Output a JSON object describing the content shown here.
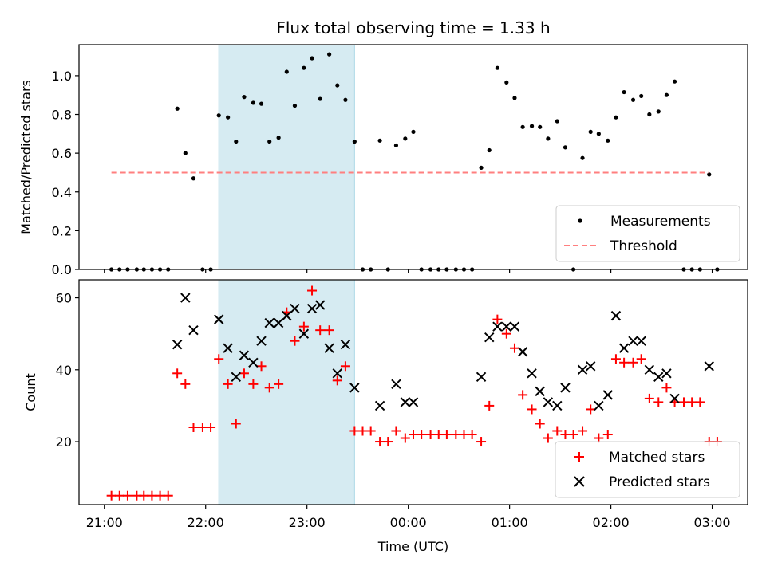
{
  "chart_data": [
    {
      "type": "scatter",
      "title": "Flux total observing time = 1.33 h",
      "xlabel": "",
      "ylabel": "Matched/Predicted stars",
      "ylim": [
        0,
        1.16
      ],
      "yticks": [
        0.0,
        0.2,
        0.4,
        0.6,
        0.8,
        1.0
      ],
      "ytick_labels": [
        "0.0",
        "0.2",
        "0.4",
        "0.6",
        "0.8",
        "1.0"
      ],
      "xlim_hours": [
        20.75,
        27.35
      ],
      "shaded_region_hours": [
        22.13,
        23.47
      ],
      "legend_placement": "lower-right",
      "series": [
        {
          "name": "Measurements",
          "marker": "dot",
          "color": "#000000",
          "points": [
            [
              21.07,
              0
            ],
            [
              21.15,
              0
            ],
            [
              21.23,
              0
            ],
            [
              21.32,
              0
            ],
            [
              21.39,
              0
            ],
            [
              21.47,
              0
            ],
            [
              21.55,
              0
            ],
            [
              21.63,
              0
            ],
            [
              21.72,
              0.83
            ],
            [
              21.8,
              0.6
            ],
            [
              21.88,
              0.47
            ],
            [
              21.97,
              0
            ],
            [
              22.05,
              0
            ],
            [
              22.13,
              0.795
            ],
            [
              22.22,
              0.785
            ],
            [
              22.3,
              0.66
            ],
            [
              22.38,
              0.89
            ],
            [
              22.47,
              0.86
            ],
            [
              22.55,
              0.855
            ],
            [
              22.63,
              0.66
            ],
            [
              22.72,
              0.68
            ],
            [
              22.8,
              1.02
            ],
            [
              22.88,
              0.845
            ],
            [
              22.97,
              1.04
            ],
            [
              23.05,
              1.09
            ],
            [
              23.13,
              0.88
            ],
            [
              23.22,
              1.11
            ],
            [
              23.3,
              0.95
            ],
            [
              23.38,
              0.875
            ],
            [
              23.47,
              0.66
            ],
            [
              23.55,
              0
            ],
            [
              23.63,
              0
            ],
            [
              23.72,
              0.665
            ],
            [
              23.8,
              0
            ],
            [
              23.88,
              0.64
            ],
            [
              23.97,
              0.675
            ],
            [
              24.05,
              0.71
            ],
            [
              24.13,
              0
            ],
            [
              24.22,
              0
            ],
            [
              24.3,
              0
            ],
            [
              24.38,
              0
            ],
            [
              24.47,
              0
            ],
            [
              24.55,
              0
            ],
            [
              24.63,
              0
            ],
            [
              24.72,
              0.525
            ],
            [
              24.8,
              0.615
            ],
            [
              24.88,
              1.04
            ],
            [
              24.97,
              0.965
            ],
            [
              25.05,
              0.885
            ],
            [
              25.13,
              0.735
            ],
            [
              25.22,
              0.74
            ],
            [
              25.3,
              0.735
            ],
            [
              25.38,
              0.675
            ],
            [
              25.47,
              0.765
            ],
            [
              25.55,
              0.63
            ],
            [
              25.63,
              0
            ],
            [
              25.72,
              0.575
            ],
            [
              25.8,
              0.71
            ],
            [
              25.88,
              0.7
            ],
            [
              25.97,
              0.665
            ],
            [
              26.05,
              0.785
            ],
            [
              26.13,
              0.915
            ],
            [
              26.22,
              0.875
            ],
            [
              26.3,
              0.895
            ],
            [
              26.38,
              0.8
            ],
            [
              26.47,
              0.815
            ],
            [
              26.55,
              0.9
            ],
            [
              26.63,
              0.97
            ],
            [
              26.72,
              0
            ],
            [
              26.8,
              0
            ],
            [
              26.88,
              0
            ],
            [
              26.97,
              0.49
            ],
            [
              27.05,
              0
            ]
          ]
        },
        {
          "name": "Threshold",
          "marker": "dashed-line",
          "color": "#ff7f7f",
          "points": [
            [
              21.07,
              0.5
            ],
            [
              26.97,
              0.5
            ]
          ]
        }
      ]
    },
    {
      "type": "scatter",
      "title": "",
      "xlabel": "Time (UTC)",
      "ylabel": "Count",
      "ylim": [
        2.5,
        65
      ],
      "yticks": [
        20,
        40,
        60
      ],
      "ytick_labels": [
        "20",
        "40",
        "60"
      ],
      "xlim_hours": [
        20.75,
        27.35
      ],
      "xticks_hours": [
        21,
        22,
        23,
        24,
        25,
        26,
        27
      ],
      "xtick_labels": [
        "21:00",
        "22:00",
        "23:00",
        "00:00",
        "01:00",
        "02:00",
        "03:00"
      ],
      "shaded_region_hours": [
        22.13,
        23.47
      ],
      "legend_placement": "lower-right",
      "series": [
        {
          "name": "Matched stars",
          "marker": "plus",
          "color": "#ff0000",
          "points": [
            [
              21.07,
              5
            ],
            [
              21.15,
              5
            ],
            [
              21.23,
              5
            ],
            [
              21.32,
              5
            ],
            [
              21.39,
              5
            ],
            [
              21.47,
              5
            ],
            [
              21.55,
              5
            ],
            [
              21.63,
              5
            ],
            [
              21.72,
              39
            ],
            [
              21.8,
              36
            ],
            [
              21.88,
              24
            ],
            [
              21.97,
              24
            ],
            [
              22.05,
              24
            ],
            [
              22.13,
              43
            ],
            [
              22.22,
              36
            ],
            [
              22.3,
              25
            ],
            [
              22.38,
              39
            ],
            [
              22.47,
              36
            ],
            [
              22.55,
              41
            ],
            [
              22.63,
              35
            ],
            [
              22.72,
              36
            ],
            [
              22.8,
              56
            ],
            [
              22.88,
              48
            ],
            [
              22.97,
              52
            ],
            [
              23.05,
              62
            ],
            [
              23.13,
              51
            ],
            [
              23.22,
              51
            ],
            [
              23.3,
              37
            ],
            [
              23.38,
              41
            ],
            [
              23.47,
              23
            ],
            [
              23.55,
              23
            ],
            [
              23.63,
              23
            ],
            [
              23.72,
              20
            ],
            [
              23.8,
              20
            ],
            [
              23.88,
              23
            ],
            [
              23.97,
              21
            ],
            [
              24.05,
              22
            ],
            [
              24.13,
              22
            ],
            [
              24.22,
              22
            ],
            [
              24.3,
              22
            ],
            [
              24.38,
              22
            ],
            [
              24.47,
              22
            ],
            [
              24.55,
              22
            ],
            [
              24.63,
              22
            ],
            [
              24.72,
              20
            ],
            [
              24.8,
              30
            ],
            [
              24.88,
              54
            ],
            [
              24.97,
              50
            ],
            [
              25.05,
              46
            ],
            [
              25.13,
              33
            ],
            [
              25.22,
              29
            ],
            [
              25.3,
              25
            ],
            [
              25.38,
              21
            ],
            [
              25.47,
              23
            ],
            [
              25.55,
              22
            ],
            [
              25.63,
              22
            ],
            [
              25.72,
              23
            ],
            [
              25.8,
              29
            ],
            [
              25.88,
              21
            ],
            [
              25.97,
              22
            ],
            [
              26.05,
              43
            ],
            [
              26.13,
              42
            ],
            [
              26.22,
              42
            ],
            [
              26.3,
              43
            ],
            [
              26.38,
              32
            ],
            [
              26.47,
              31
            ],
            [
              26.55,
              35
            ],
            [
              26.63,
              31
            ],
            [
              26.72,
              31
            ],
            [
              26.8,
              31
            ],
            [
              26.88,
              31
            ],
            [
              26.97,
              20
            ],
            [
              27.05,
              20
            ]
          ]
        },
        {
          "name": "Predicted stars",
          "marker": "x",
          "color": "#000000",
          "points": [
            [
              21.72,
              47
            ],
            [
              21.8,
              60
            ],
            [
              21.88,
              51
            ],
            [
              22.13,
              54
            ],
            [
              22.22,
              46
            ],
            [
              22.3,
              38
            ],
            [
              22.38,
              44
            ],
            [
              22.47,
              42
            ],
            [
              22.55,
              48
            ],
            [
              22.63,
              53
            ],
            [
              22.72,
              53
            ],
            [
              22.8,
              55
            ],
            [
              22.88,
              57
            ],
            [
              22.97,
              50
            ],
            [
              23.05,
              57
            ],
            [
              23.13,
              58
            ],
            [
              23.22,
              46
            ],
            [
              23.3,
              39
            ],
            [
              23.38,
              47
            ],
            [
              23.47,
              35
            ],
            [
              23.72,
              30
            ],
            [
              23.88,
              36
            ],
            [
              23.97,
              31
            ],
            [
              24.05,
              31
            ],
            [
              24.72,
              38
            ],
            [
              24.8,
              49
            ],
            [
              24.88,
              52
            ],
            [
              24.97,
              52
            ],
            [
              25.05,
              52
            ],
            [
              25.13,
              45
            ],
            [
              25.22,
              39
            ],
            [
              25.3,
              34
            ],
            [
              25.38,
              31
            ],
            [
              25.47,
              30
            ],
            [
              25.55,
              35
            ],
            [
              25.72,
              40
            ],
            [
              25.8,
              41
            ],
            [
              25.88,
              30
            ],
            [
              25.97,
              33
            ],
            [
              26.05,
              55
            ],
            [
              26.13,
              46
            ],
            [
              26.22,
              48
            ],
            [
              26.3,
              48
            ],
            [
              26.38,
              40
            ],
            [
              26.47,
              38
            ],
            [
              26.55,
              39
            ],
            [
              26.63,
              32
            ],
            [
              26.97,
              41
            ]
          ]
        }
      ]
    }
  ],
  "colors": {
    "shade": "#add8e6",
    "threshold": "#ff7f7f",
    "matched": "#ff0000",
    "measurement": "#000000"
  }
}
